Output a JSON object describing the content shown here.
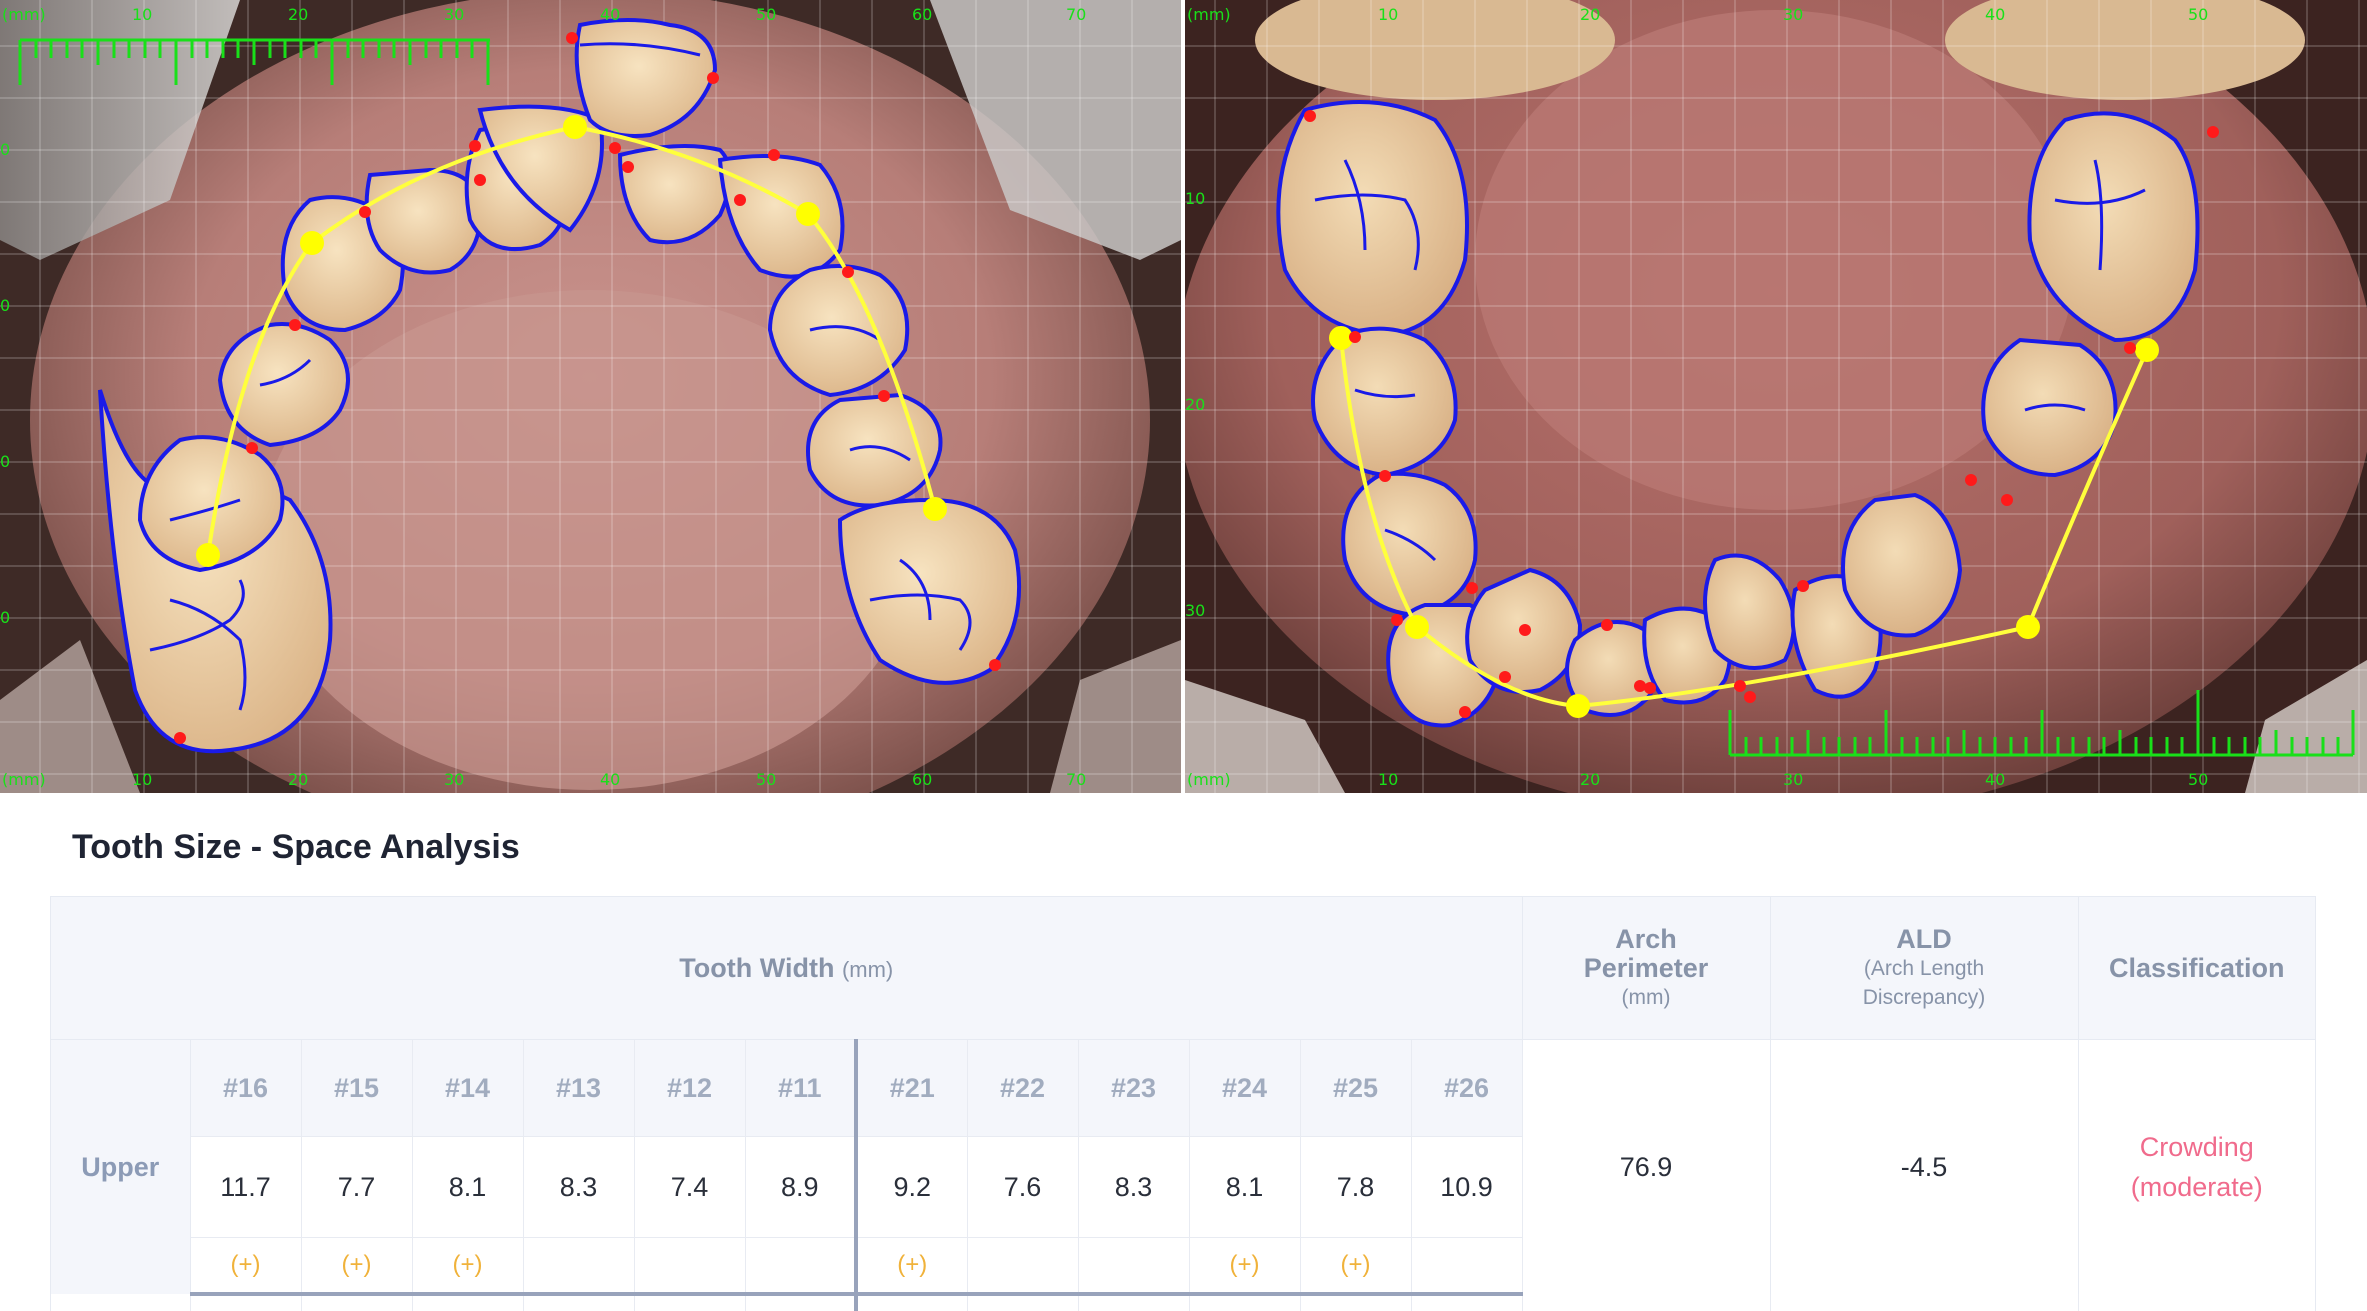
{
  "upper_photo": {
    "axis_unit": "(mm)",
    "ticks": [
      "10",
      "20",
      "30",
      "40",
      "50",
      "60",
      "70"
    ],
    "side_ticks": [
      "0",
      "0",
      "0",
      "0"
    ],
    "colors": {
      "outline": "#1a1ae8",
      "arch": "#ffff3c",
      "point": "#ffff00",
      "contact": "#ff1a1a",
      "ruler": "#19e019",
      "grid": "#ffffff"
    }
  },
  "lower_photo": {
    "axis_unit": "(mm)",
    "ticks": [
      "10",
      "20",
      "30",
      "40",
      "50"
    ],
    "side_ticks": [
      "10",
      "20",
      "30"
    ]
  },
  "panel": {
    "title": "Tooth Size - Space Analysis"
  },
  "table": {
    "headers": {
      "tooth_width": "Tooth Width",
      "tooth_width_unit": "(mm)",
      "arch_perimeter_line1": "Arch",
      "arch_perimeter_line2": "Perimeter",
      "arch_perimeter_unit": "(mm)",
      "ald": "ALD",
      "ald_sub1": "(Arch Length",
      "ald_sub2": "Discrepancy)",
      "classification": "Classification"
    },
    "upper": {
      "label": "Upper",
      "teeth": [
        "#16",
        "#15",
        "#14",
        "#13",
        "#12",
        "#11",
        "#21",
        "#22",
        "#23",
        "#24",
        "#25",
        "#26"
      ],
      "widths": [
        "11.7",
        "7.7",
        "8.1",
        "8.3",
        "7.4",
        "8.9",
        "9.2",
        "7.6",
        "8.3",
        "8.1",
        "7.8",
        "10.9"
      ],
      "marks": [
        "(+)",
        "(+)",
        "(+)",
        "",
        "",
        "",
        "(+)",
        "",
        "",
        "(+)",
        "(+)",
        ""
      ],
      "arch_perimeter": "76.9",
      "ald": "-4.5",
      "classification_line1": "Crowding",
      "classification_line2": "(moderate)"
    }
  }
}
